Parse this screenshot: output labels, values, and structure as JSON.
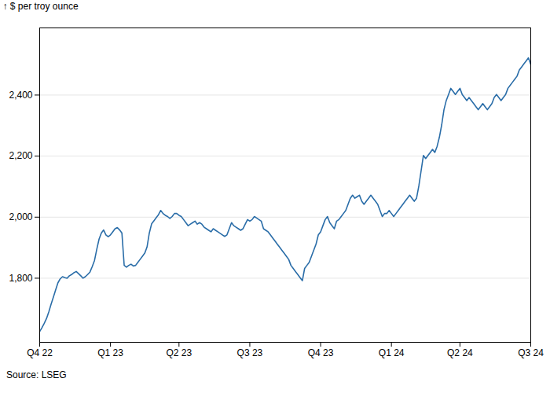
{
  "chart_data": {
    "type": "line",
    "ylabel": "$ per troy ounce",
    "caption": "Source: LSEG",
    "color": "#2a6da8",
    "grid": true,
    "ylim": [
      1590,
      2620
    ],
    "yticks": [
      1800,
      2000,
      2200,
      2400
    ],
    "categories": [
      "Q4 22",
      null,
      null,
      null,
      null,
      null,
      null,
      null,
      null,
      null,
      null,
      null,
      null,
      null,
      null,
      null,
      null,
      null,
      null,
      null,
      null,
      null,
      null,
      null,
      null,
      null,
      null,
      null,
      null,
      null,
      null,
      "Q1 23",
      null,
      null,
      null,
      null,
      null,
      null,
      null,
      null,
      null,
      null,
      null,
      null,
      null,
      null,
      null,
      null,
      null,
      null,
      null,
      null,
      null,
      null,
      null,
      null,
      null,
      null,
      null,
      null,
      null,
      "Q2 23",
      null,
      null,
      null,
      null,
      null,
      null,
      null,
      null,
      null,
      null,
      null,
      null,
      null,
      null,
      null,
      null,
      null,
      null,
      null,
      null,
      null,
      null,
      null,
      null,
      null,
      null,
      null,
      null,
      null,
      null,
      "Q3 23",
      null,
      null,
      null,
      null,
      null,
      null,
      null,
      null,
      null,
      null,
      null,
      null,
      null,
      null,
      null,
      null,
      null,
      null,
      null,
      null,
      null,
      null,
      null,
      null,
      null,
      null,
      null,
      null,
      null,
      null,
      "Q4 23",
      null,
      null,
      null,
      null,
      null,
      null,
      null,
      null,
      null,
      null,
      null,
      null,
      null,
      null,
      null,
      null,
      null,
      null,
      null,
      null,
      null,
      null,
      null,
      null,
      null,
      null,
      null,
      null,
      null,
      null,
      "Q1 24",
      null,
      null,
      null,
      null,
      null,
      null,
      null,
      null,
      null,
      null,
      null,
      null,
      null,
      null,
      null,
      null,
      null,
      null,
      null,
      null,
      null,
      null,
      null,
      null,
      null,
      null,
      null,
      null,
      null,
      "Q2 24",
      null,
      null,
      null,
      null,
      null,
      null,
      null,
      null,
      null,
      null,
      null,
      null,
      null,
      null,
      null,
      null,
      null,
      null,
      null,
      null,
      null,
      null,
      null,
      null,
      null,
      null,
      null,
      null,
      null,
      null,
      "Q3 24"
    ],
    "values": [
      1625,
      1638,
      1652,
      1668,
      1690,
      1715,
      1738,
      1762,
      1785,
      1798,
      1805,
      1802,
      1800,
      1808,
      1812,
      1818,
      1822,
      1815,
      1808,
      1800,
      1805,
      1812,
      1820,
      1838,
      1858,
      1895,
      1928,
      1948,
      1958,
      1942,
      1936,
      1942,
      1952,
      1962,
      1966,
      1958,
      1948,
      1842,
      1836,
      1842,
      1846,
      1840,
      1842,
      1852,
      1862,
      1872,
      1882,
      1902,
      1948,
      1978,
      1988,
      1998,
      2008,
      2022,
      2012,
      2006,
      2002,
      1996,
      2002,
      2012,
      2012,
      2006,
      2002,
      1992,
      1982,
      1972,
      1977,
      1982,
      1987,
      1977,
      1982,
      1977,
      1967,
      1962,
      1957,
      1952,
      1962,
      1957,
      1952,
      1947,
      1942,
      1937,
      1942,
      1962,
      1982,
      1972,
      1967,
      1962,
      1957,
      1962,
      1977,
      1992,
      1987,
      1992,
      2002,
      1997,
      1992,
      1987,
      1962,
      1957,
      1952,
      1942,
      1932,
      1922,
      1912,
      1902,
      1892,
      1882,
      1872,
      1862,
      1842,
      1832,
      1822,
      1812,
      1802,
      1792,
      1832,
      1842,
      1852,
      1872,
      1892,
      1912,
      1942,
      1952,
      1972,
      1992,
      2002,
      1982,
      1972,
      1962,
      1987,
      1992,
      2002,
      2012,
      2022,
      2042,
      2062,
      2072,
      2062,
      2067,
      2072,
      2052,
      2042,
      2052,
      2062,
      2072,
      2062,
      2052,
      2042,
      2022,
      2002,
      2012,
      2012,
      2022,
      2012,
      2002,
      2012,
      2022,
      2032,
      2042,
      2052,
      2062,
      2072,
      2062,
      2052,
      2062,
      2102,
      2152,
      2202,
      2192,
      2202,
      2212,
      2222,
      2212,
      2232,
      2262,
      2302,
      2352,
      2382,
      2402,
      2422,
      2412,
      2402,
      2412,
      2422,
      2402,
      2392,
      2382,
      2392,
      2382,
      2372,
      2362,
      2352,
      2362,
      2372,
      2362,
      2352,
      2362,
      2372,
      2392,
      2402,
      2392,
      2382,
      2392,
      2402,
      2422,
      2432,
      2442,
      2452,
      2462,
      2482,
      2492,
      2502,
      2512,
      2522,
      2500
    ]
  }
}
